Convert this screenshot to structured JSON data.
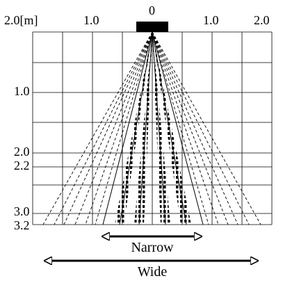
{
  "units_label": "2.0[m]",
  "top_labels": [
    "1.0",
    "0",
    "1.0",
    "2.0"
  ],
  "depth_labels": [
    "1.0",
    "2.0",
    "2.2",
    "3.0",
    "3.2"
  ],
  "narrow_label": "Narrow",
  "wide_label": "Wide",
  "colors": {
    "line": "#000000",
    "background": "#ffffff"
  },
  "sensor": {
    "icon": "sensor-block-icon"
  },
  "arrows": {
    "icon": "double-headed-arrow-icon"
  }
}
